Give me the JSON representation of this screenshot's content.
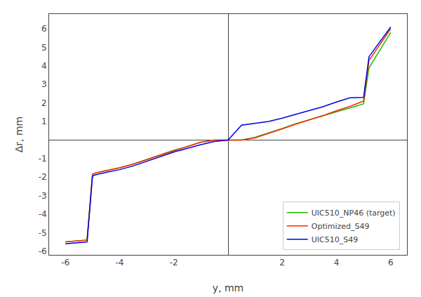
{
  "chart_data": {
    "type": "line",
    "xlabel": "y, mm",
    "ylabel": "Δr, mm",
    "xlim": [
      -6.6,
      6.6
    ],
    "ylim": [
      -6.2,
      6.8
    ],
    "xticks": [
      -6,
      -4,
      -2,
      2,
      4,
      6
    ],
    "yticks": [
      -6,
      -5,
      -4,
      -3,
      -2,
      -1,
      1,
      2,
      3,
      4,
      5,
      6
    ],
    "grid": false,
    "legend": "lower right",
    "series": [
      {
        "name": "UIC510_NP46 (target)",
        "color": "#22bb00",
        "x": [
          -6.0,
          -5.2,
          -5.0,
          -4.9,
          -4.5,
          -4.0,
          -3.5,
          -3.0,
          -2.5,
          -2.0,
          -1.5,
          -1.0,
          -0.5,
          0.0,
          0.5,
          1.0,
          1.5,
          2.0,
          2.5,
          3.0,
          3.5,
          4.0,
          4.5,
          5.0,
          5.2,
          6.0
        ],
        "values": [
          -5.5,
          -5.4,
          -1.85,
          -1.78,
          -1.65,
          -1.5,
          -1.3,
          -1.05,
          -0.8,
          -0.55,
          -0.35,
          -0.12,
          0.0,
          0.0,
          0.0,
          0.15,
          0.38,
          0.62,
          0.88,
          1.08,
          1.3,
          1.52,
          1.72,
          1.95,
          3.9,
          5.8
        ]
      },
      {
        "name": "Optimized_S49",
        "color": "#ff2200",
        "x": [
          -6.0,
          -5.2,
          -5.0,
          -4.9,
          -4.5,
          -4.0,
          -3.5,
          -3.0,
          -2.5,
          -2.0,
          -1.5,
          -1.0,
          -0.5,
          0.0,
          0.5,
          1.0,
          1.5,
          2.0,
          2.5,
          3.0,
          3.5,
          4.0,
          4.5,
          5.0,
          5.2,
          6.0
        ],
        "values": [
          -5.5,
          -5.4,
          -1.85,
          -1.78,
          -1.65,
          -1.5,
          -1.3,
          -1.05,
          -0.82,
          -0.58,
          -0.35,
          -0.12,
          0.0,
          0.0,
          0.0,
          0.12,
          0.35,
          0.6,
          0.86,
          1.08,
          1.32,
          1.58,
          1.82,
          2.1,
          4.3,
          6.0
        ]
      },
      {
        "name": "UIC510_S49",
        "color": "#0000dd",
        "x": [
          -6.0,
          -5.2,
          -5.0,
          -4.9,
          -4.5,
          -4.0,
          -3.5,
          -3.0,
          -2.5,
          -2.0,
          -1.5,
          -1.0,
          -0.5,
          0.0,
          0.5,
          0.6,
          1.0,
          1.5,
          2.0,
          2.5,
          3.0,
          3.5,
          4.0,
          4.5,
          5.0,
          5.2,
          6.0
        ],
        "values": [
          -5.6,
          -5.5,
          -1.95,
          -1.88,
          -1.75,
          -1.6,
          -1.4,
          -1.15,
          -0.9,
          -0.65,
          -0.45,
          -0.25,
          -0.08,
          0.0,
          0.8,
          0.82,
          0.88,
          1.0,
          1.18,
          1.38,
          1.58,
          1.8,
          2.05,
          2.28,
          2.3,
          4.5,
          6.1
        ]
      }
    ]
  }
}
